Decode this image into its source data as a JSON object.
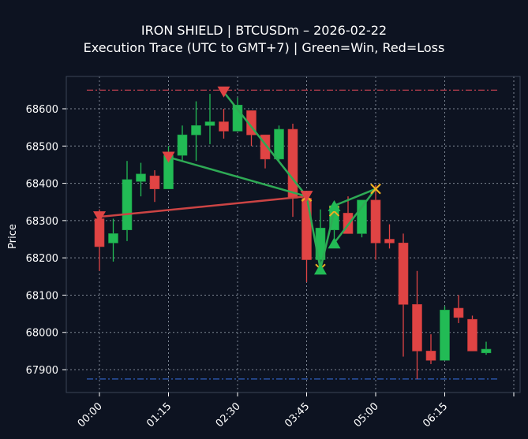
{
  "header": {
    "title_line1": "IRON SHIELD | BTCUSDm – 2026-02-22",
    "title_line2": "Execution Trace (UTC to GMT+7) | Green=Win, Red=Loss"
  },
  "colors": {
    "background": "#0d1321",
    "bull": "#22bb55",
    "bear": "#e04444",
    "win_line": "#2eaa55",
    "loss_line": "#cc4444",
    "exit_marker": "#f0b020",
    "upper_level": "#c04050",
    "lower_level": "#3060c0"
  },
  "chart_data": {
    "type": "candlestick",
    "title": "IRON SHIELD | BTCUSDm – 2026-02-22\nExecution Trace (UTC to GMT+7) | Green=Win, Red=Loss",
    "xlabel": "",
    "ylabel": "Price",
    "ylim": [
      67840,
      68690
    ],
    "grid": true,
    "x_ticks": [
      "00:00",
      "01:15",
      "02:30",
      "03:45",
      "05:00",
      "06:15"
    ],
    "y_ticks": [
      67900,
      68000,
      68100,
      68200,
      68300,
      68400,
      68500,
      68600
    ],
    "horizontal_levels": [
      {
        "name": "upper",
        "value": 68650,
        "style": "dashdot",
        "color": "#c04050"
      },
      {
        "name": "lower",
        "value": 67875,
        "style": "dashdot",
        "color": "#3060c0"
      }
    ],
    "candles": [
      {
        "time": "00:00",
        "open": 68305,
        "high": 68330,
        "low": 68165,
        "close": 68230
      },
      {
        "time": "00:15",
        "open": 68240,
        "high": 68305,
        "low": 68190,
        "close": 68265
      },
      {
        "time": "00:30",
        "open": 68275,
        "high": 68460,
        "low": 68245,
        "close": 68410
      },
      {
        "time": "00:45",
        "open": 68405,
        "high": 68455,
        "low": 68365,
        "close": 68425
      },
      {
        "time": "01:00",
        "open": 68420,
        "high": 68435,
        "low": 68350,
        "close": 68385
      },
      {
        "time": "01:15",
        "open": 68385,
        "high": 68500,
        "low": 68385,
        "close": 68475
      },
      {
        "time": "01:30",
        "open": 68475,
        "high": 68555,
        "low": 68460,
        "close": 68530
      },
      {
        "time": "01:45",
        "open": 68530,
        "high": 68620,
        "low": 68460,
        "close": 68555
      },
      {
        "time": "02:00",
        "open": 68555,
        "high": 68640,
        "low": 68505,
        "close": 68565
      },
      {
        "time": "02:15",
        "open": 68565,
        "high": 68600,
        "low": 68520,
        "close": 68540
      },
      {
        "time": "02:30",
        "open": 68540,
        "high": 68630,
        "low": 68540,
        "close": 68610
      },
      {
        "time": "02:45",
        "open": 68595,
        "high": 68595,
        "low": 68500,
        "close": 68530
      },
      {
        "time": "03:00",
        "open": 68530,
        "high": 68530,
        "low": 68440,
        "close": 68465
      },
      {
        "time": "03:15",
        "open": 68465,
        "high": 68555,
        "low": 68460,
        "close": 68545
      },
      {
        "time": "03:30",
        "open": 68545,
        "high": 68560,
        "low": 68310,
        "close": 68360
      },
      {
        "time": "03:45",
        "open": 68360,
        "high": 68380,
        "low": 68135,
        "close": 68195
      },
      {
        "time": "04:00",
        "open": 68195,
        "high": 68330,
        "low": 68165,
        "close": 68280
      },
      {
        "time": "04:15",
        "open": 68275,
        "high": 68345,
        "low": 68235,
        "close": 68340
      },
      {
        "time": "04:30",
        "open": 68320,
        "high": 68365,
        "low": 68265,
        "close": 68265
      },
      {
        "time": "04:45",
        "open": 68265,
        "high": 68355,
        "low": 68255,
        "close": 68355
      },
      {
        "time": "05:00",
        "open": 68355,
        "high": 68395,
        "low": 68195,
        "close": 68240
      },
      {
        "time": "05:15",
        "open": 68250,
        "high": 68290,
        "low": 68225,
        "close": 68240
      },
      {
        "time": "05:30",
        "open": 68240,
        "high": 68265,
        "low": 67935,
        "close": 68075
      },
      {
        "time": "05:45",
        "open": 68075,
        "high": 68165,
        "low": 67875,
        "close": 67950
      },
      {
        "time": "06:00",
        "open": 67950,
        "high": 67995,
        "low": 67915,
        "close": 67925
      },
      {
        "time": "06:15",
        "open": 67925,
        "high": 68070,
        "low": 67925,
        "close": 68060
      },
      {
        "time": "06:30",
        "open": 68065,
        "high": 68100,
        "low": 68025,
        "close": 68040
      },
      {
        "time": "06:45",
        "open": 68035,
        "high": 68045,
        "low": 67950,
        "close": 67950
      },
      {
        "time": "07:00",
        "open": 67945,
        "high": 67975,
        "low": 67940,
        "close": 67955
      }
    ],
    "trades": [
      {
        "side": "sell",
        "result": "loss",
        "entry_time": "00:00",
        "entry_price": 68310,
        "exit_time": "03:45",
        "exit_price": 68365
      },
      {
        "side": "sell",
        "result": "win",
        "entry_time": "01:15",
        "entry_price": 68470,
        "exit_time": "03:45",
        "exit_price": 68365
      },
      {
        "side": "sell",
        "result": "win",
        "entry_time": "02:15",
        "entry_price": 68645,
        "exit_time": "03:45",
        "exit_price": 68365
      },
      {
        "side": "sell",
        "result": "win",
        "entry_time": "03:45",
        "entry_price": 68365,
        "exit_time": "04:00",
        "exit_price": 68170
      },
      {
        "side": "buy",
        "result": "win",
        "entry_time": "04:00",
        "entry_price": 68170,
        "exit_time": "04:15",
        "exit_price": 68325
      },
      {
        "side": "buy",
        "result": "win",
        "entry_time": "04:15",
        "entry_price": 68340,
        "exit_time": "05:00",
        "exit_price": 68385
      },
      {
        "side": "buy",
        "result": "win",
        "entry_time": "04:15",
        "entry_price": 68240,
        "exit_time": "05:00",
        "exit_price": 68385
      }
    ]
  }
}
